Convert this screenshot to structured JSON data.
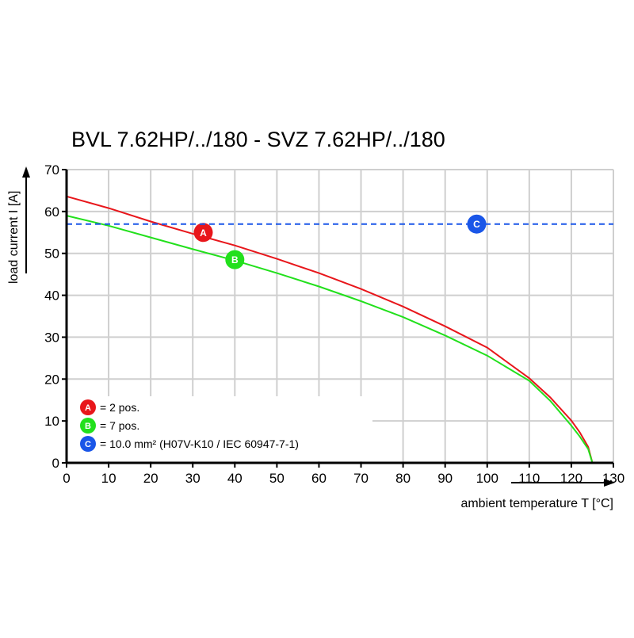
{
  "chart_data": {
    "type": "line",
    "title": "BVL 7.62HP/../180 - SVZ 7.62HP/../180",
    "xlabel": "ambient temperature T [°C]",
    "ylabel": "load current I [A]",
    "xlim": [
      0,
      130
    ],
    "ylim": [
      0,
      70
    ],
    "xticks": [
      "0",
      "10",
      "20",
      "30",
      "40",
      "50",
      "60",
      "70",
      "80",
      "90",
      "100",
      "110",
      "120",
      "130"
    ],
    "yticks": [
      "0",
      "10",
      "20",
      "30",
      "40",
      "50",
      "60",
      "70"
    ],
    "grid": true,
    "legend_position": "bottom-left",
    "series": [
      {
        "marker": "A",
        "name": "= 2 pos.",
        "color": "#e8161b",
        "style": "solid",
        "x": [
          0,
          10,
          20,
          30,
          40,
          50,
          60,
          70,
          80,
          90,
          100,
          110,
          115,
          120,
          122,
          124,
          125
        ],
        "y": [
          63.6,
          60.8,
          57.6,
          54.7,
          51.9,
          48.7,
          45.3,
          41.5,
          37.3,
          32.6,
          27.5,
          20.2,
          15.6,
          10.1,
          7.3,
          3.8,
          0
        ],
        "marker_pos": [
          32.5,
          55
        ]
      },
      {
        "marker": "B",
        "name": "= 7 pos.",
        "color": "#22e01c",
        "style": "solid",
        "x": [
          0,
          10,
          20,
          30,
          40,
          50,
          60,
          70,
          80,
          90,
          100,
          110,
          115,
          120,
          122,
          124,
          125
        ],
        "y": [
          59.0,
          56.6,
          53.8,
          51.0,
          48.3,
          45.3,
          42.1,
          38.6,
          34.8,
          30.4,
          25.6,
          19.6,
          14.8,
          8.9,
          6.3,
          3.3,
          0
        ],
        "marker_pos": [
          40,
          48.5
        ]
      },
      {
        "marker": "C",
        "name": "= 10.0 mm² (H07V-K10 / IEC 60947-7-1)",
        "color": "#1a56e8",
        "style": "dashed",
        "x": [
          0,
          130
        ],
        "y": [
          57,
          57
        ],
        "marker_pos": [
          97.5,
          57
        ]
      }
    ]
  }
}
